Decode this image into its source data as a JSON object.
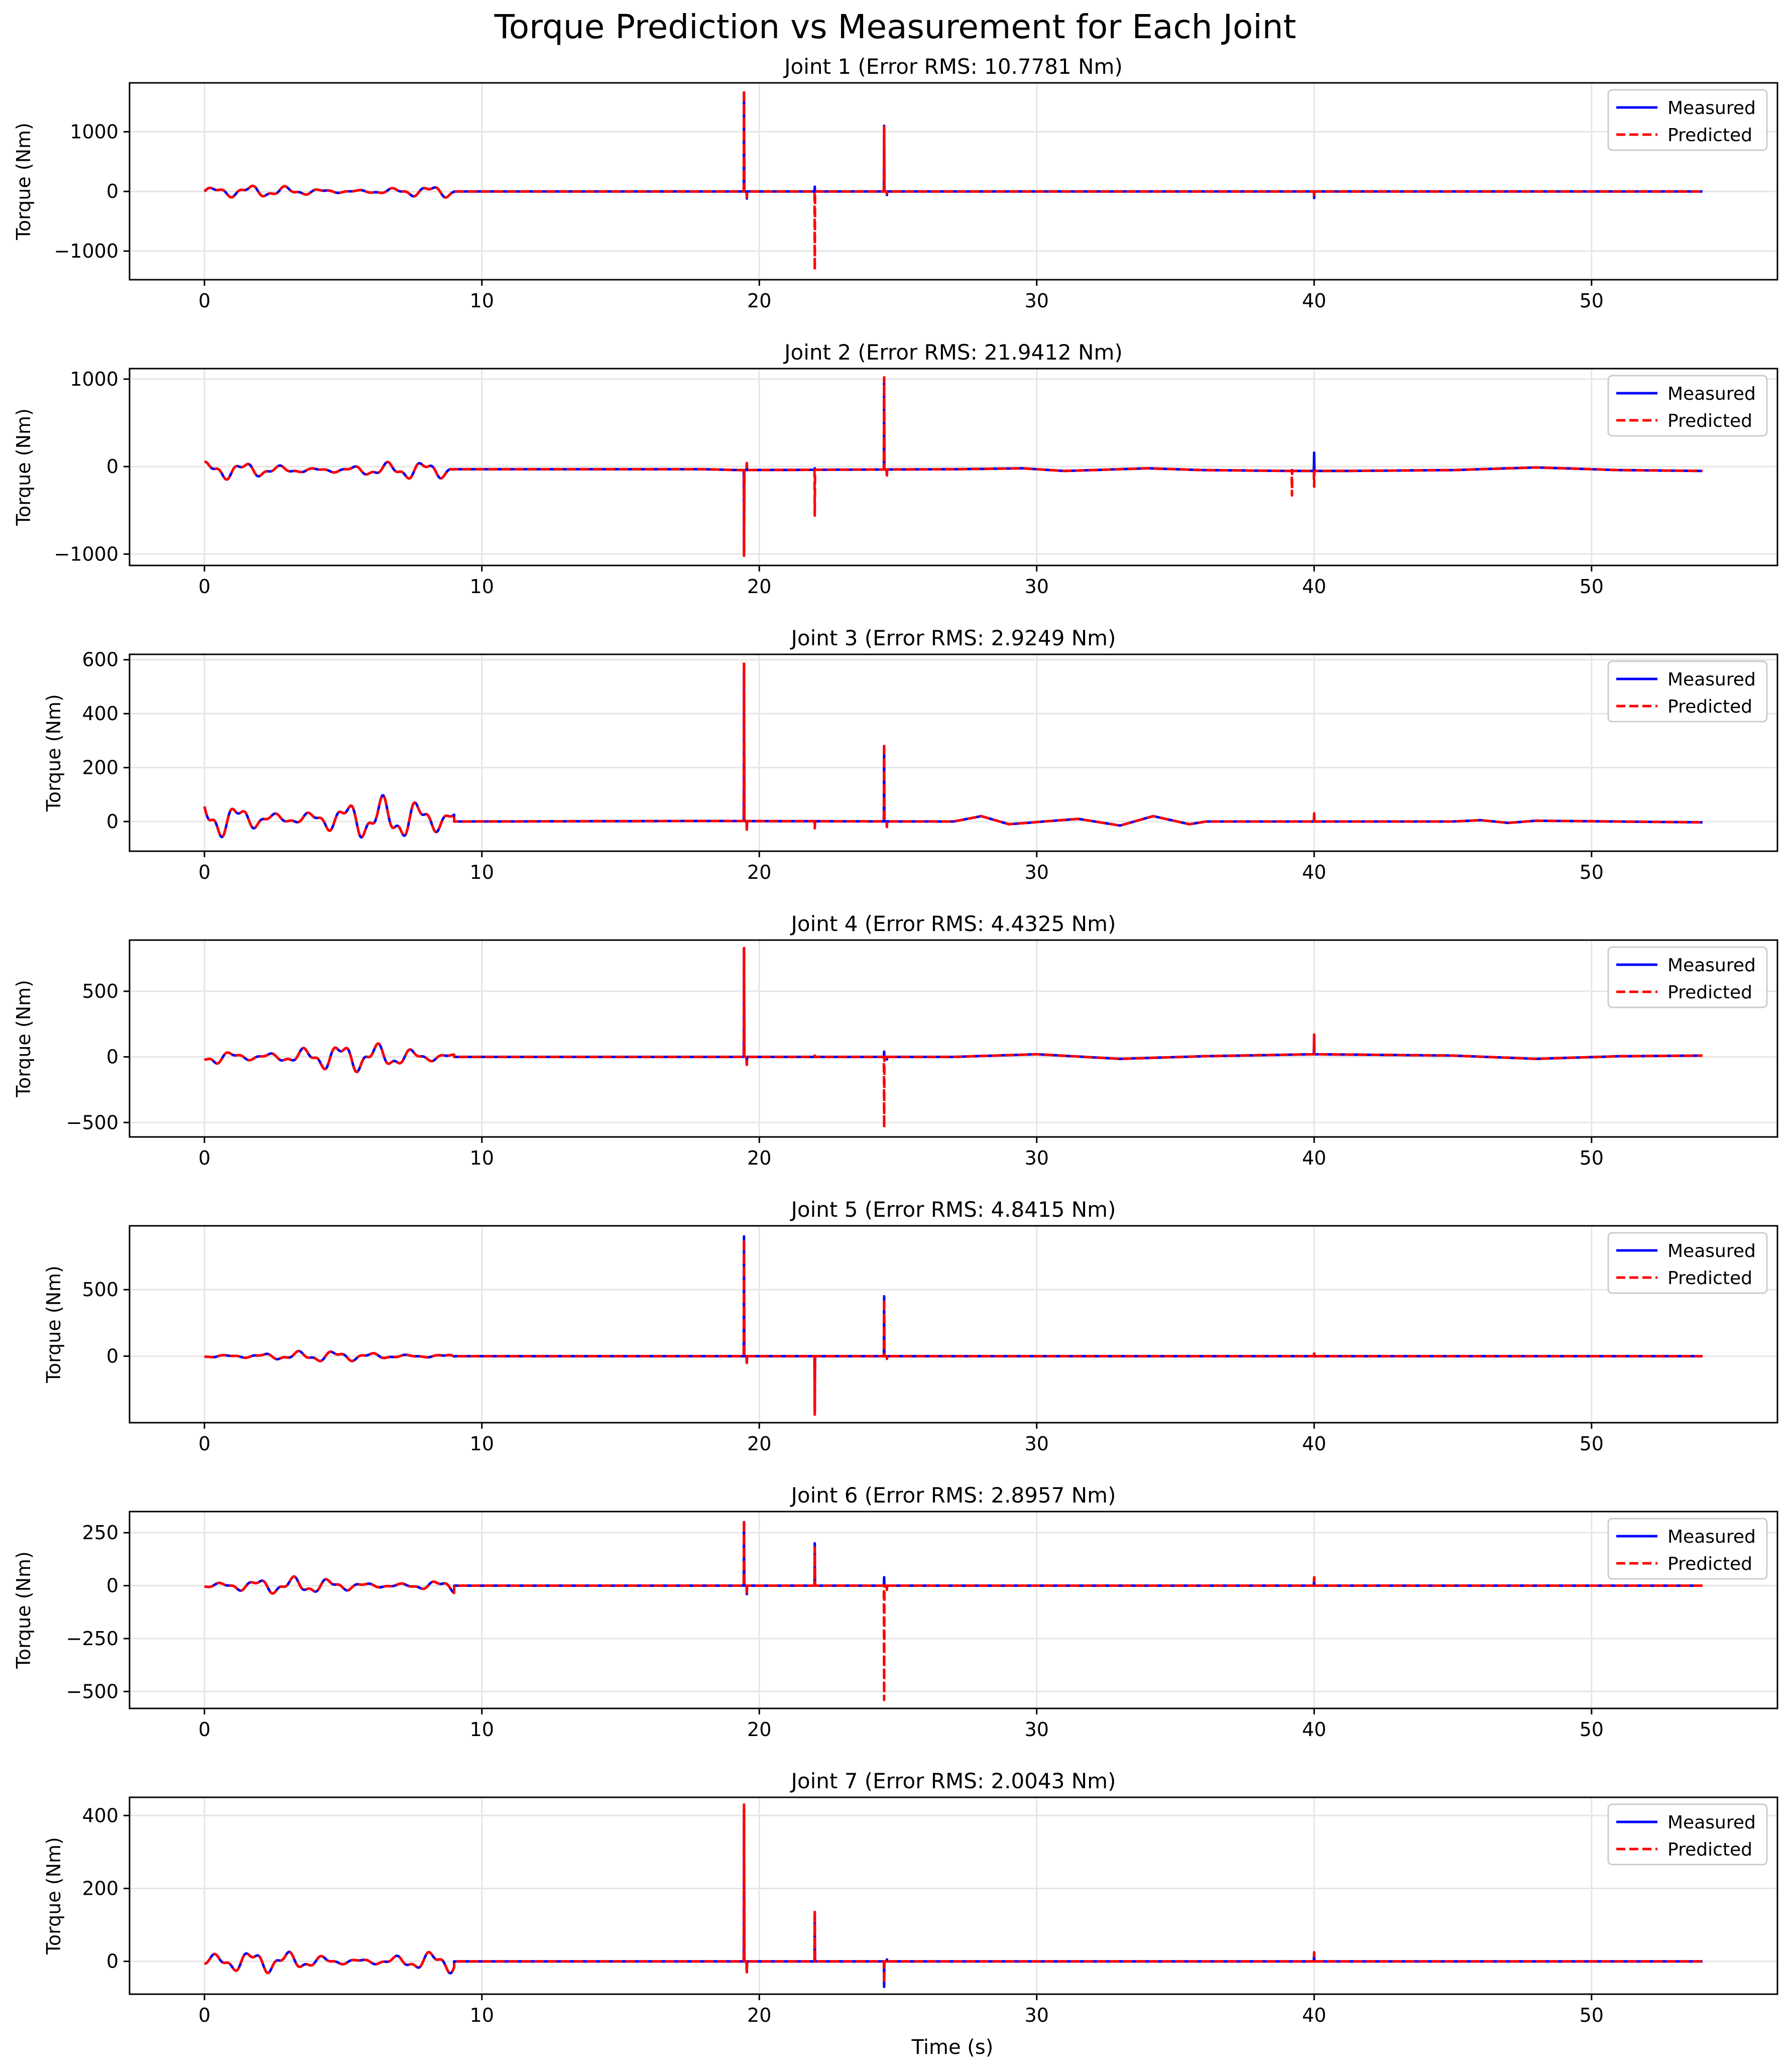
{
  "figure": {
    "title": "Torque Prediction vs Measurement for Each Joint",
    "xlabel": "Time (s)"
  },
  "colors": {
    "measured": "#0000ff",
    "predicted": "#ff0000",
    "grid": "#e6e6e6",
    "axis": "#000000"
  },
  "chart_data": [
    {
      "type": "line",
      "title": "Joint 1 (Error RMS: 10.7781 Nm)",
      "ylabel": "Torque (Nm)",
      "xlim": [
        -2.7,
        56.7
      ],
      "ylim": [
        -1480,
        1820
      ],
      "xticks": [
        0,
        10,
        20,
        30,
        40,
        50
      ],
      "yticks": [
        -1000,
        0,
        1000
      ],
      "yticklabels": [
        "−1000",
        "0",
        "1000"
      ],
      "grid": true,
      "legend": "top-right",
      "osc": {
        "amp": 100,
        "offset": 0,
        "end": 9.0
      },
      "tail": [
        [
          9.0,
          0
        ],
        [
          54,
          0
        ]
      ],
      "series": [
        {
          "name": "Measured",
          "style": "solid",
          "spikes": [
            [
              19.45,
              1650
            ],
            [
              19.55,
              -120
            ],
            [
              22.0,
              80
            ],
            [
              24.5,
              1100
            ],
            [
              24.6,
              -60
            ],
            [
              40.0,
              -110
            ]
          ]
        },
        {
          "name": "Predicted",
          "style": "dashed",
          "spikes": [
            [
              19.45,
              1700
            ],
            [
              19.55,
              -100
            ],
            [
              22.0,
              -1320
            ],
            [
              24.5,
              1080
            ],
            [
              24.6,
              -40
            ],
            [
              40.0,
              -90
            ]
          ]
        }
      ]
    },
    {
      "type": "line",
      "title": "Joint 2 (Error RMS: 21.9412 Nm)",
      "ylabel": "Torque (Nm)",
      "xlim": [
        -2.7,
        56.7
      ],
      "ylim": [
        -1130,
        1120
      ],
      "xticks": [
        0,
        10,
        20,
        30,
        40,
        50
      ],
      "yticks": [
        -1000,
        0,
        1000
      ],
      "yticklabels": [
        "−1000",
        "0",
        "1000"
      ],
      "grid": true,
      "legend": "top-right",
      "osc": {
        "amp": 100,
        "offset": -40,
        "end": 9.0
      },
      "tail": [
        [
          9.0,
          -30
        ],
        [
          18,
          -30
        ],
        [
          19.3,
          -40
        ],
        [
          27,
          -30
        ],
        [
          29.5,
          -20
        ],
        [
          31,
          -50
        ],
        [
          34,
          -20
        ],
        [
          36,
          -40
        ],
        [
          39.2,
          -50
        ],
        [
          41,
          -50
        ],
        [
          45,
          -40
        ],
        [
          48,
          -10
        ],
        [
          51,
          -40
        ],
        [
          54,
          -50
        ]
      ],
      "series": [
        {
          "name": "Measured",
          "style": "solid",
          "spikes": [
            [
              19.45,
              -1000
            ],
            [
              19.55,
              40
            ],
            [
              22.0,
              -20
            ],
            [
              24.5,
              1000
            ],
            [
              24.6,
              -100
            ],
            [
              39.2,
              -40
            ],
            [
              40.0,
              160
            ],
            [
              40.7,
              -50
            ]
          ]
        },
        {
          "name": "Predicted",
          "style": "dashed",
          "spikes": [
            [
              19.45,
              -1020
            ],
            [
              19.55,
              40
            ],
            [
              22.0,
              -560
            ],
            [
              24.5,
              1020
            ],
            [
              24.6,
              -100
            ],
            [
              39.2,
              -330
            ],
            [
              40.0,
              -230
            ]
          ]
        }
      ]
    },
    {
      "type": "line",
      "title": "Joint 3 (Error RMS: 2.9249 Nm)",
      "ylabel": "Torque (Nm)",
      "xlim": [
        -2.7,
        56.7
      ],
      "ylim": [
        -110,
        620
      ],
      "xticks": [
        0,
        10,
        20,
        30,
        40,
        50
      ],
      "yticks": [
        0,
        200,
        400,
        600
      ],
      "yticklabels": [
        "0",
        "200",
        "400",
        "600"
      ],
      "grid": true,
      "legend": "top-right",
      "osc": {
        "amp": 80,
        "offset": 10,
        "end": 9.0
      },
      "tail": [
        [
          9.0,
          0
        ],
        [
          18,
          2
        ],
        [
          27,
          0
        ],
        [
          28,
          20
        ],
        [
          29,
          -10
        ],
        [
          31.5,
          10
        ],
        [
          33,
          -15
        ],
        [
          34.2,
          20
        ],
        [
          35.5,
          -10
        ],
        [
          36.1,
          0
        ],
        [
          45,
          0
        ],
        [
          46,
          5
        ],
        [
          47,
          -5
        ],
        [
          48,
          3
        ],
        [
          54,
          -3
        ]
      ],
      "series": [
        {
          "name": "Measured",
          "style": "solid",
          "spikes": [
            [
              19.45,
              580
            ],
            [
              19.55,
              -30
            ],
            [
              22.0,
              -10
            ],
            [
              24.5,
              280
            ],
            [
              24.6,
              -20
            ],
            [
              40.0,
              20
            ]
          ]
        },
        {
          "name": "Predicted",
          "style": "dashed",
          "spikes": [
            [
              19.45,
              590
            ],
            [
              19.55,
              -30
            ],
            [
              22.0,
              -25
            ],
            [
              24.5,
              290
            ],
            [
              24.6,
              -20
            ],
            [
              40.0,
              30
            ]
          ]
        }
      ]
    },
    {
      "type": "line",
      "title": "Joint 4 (Error RMS: 4.4325 Nm)",
      "ylabel": "Torque (Nm)",
      "xlim": [
        -2.7,
        56.7
      ],
      "ylim": [
        -610,
        890
      ],
      "xticks": [
        0,
        10,
        20,
        30,
        40,
        50
      ],
      "yticks": [
        -500,
        0,
        500
      ],
      "yticklabels": [
        "−500",
        "0",
        "500"
      ],
      "grid": true,
      "legend": "top-right",
      "osc": {
        "amp": 110,
        "offset": 0,
        "end": 9.0
      },
      "tail": [
        [
          9.0,
          0
        ],
        [
          18,
          0
        ],
        [
          27,
          0
        ],
        [
          30,
          20
        ],
        [
          33,
          -15
        ],
        [
          36,
          5
        ],
        [
          40,
          20
        ],
        [
          45,
          10
        ],
        [
          48,
          -15
        ],
        [
          51,
          5
        ],
        [
          54,
          10
        ]
      ],
      "series": [
        {
          "name": "Measured",
          "style": "solid",
          "spikes": [
            [
              19.45,
              820
            ],
            [
              19.55,
              -60
            ],
            [
              22.0,
              10
            ],
            [
              24.5,
              40
            ],
            [
              24.6,
              -20
            ],
            [
              40.0,
              170
            ]
          ]
        },
        {
          "name": "Predicted",
          "style": "dashed",
          "spikes": [
            [
              19.45,
              830
            ],
            [
              19.55,
              -60
            ],
            [
              22.0,
              10
            ],
            [
              24.5,
              -540
            ],
            [
              24.6,
              -20
            ],
            [
              40.0,
              170
            ]
          ]
        }
      ]
    },
    {
      "type": "line",
      "title": "Joint 5 (Error RMS: 4.8415 Nm)",
      "ylabel": "Torque (Nm)",
      "xlim": [
        -2.7,
        56.7
      ],
      "ylim": [
        -500,
        980
      ],
      "xticks": [
        0,
        10,
        20,
        30,
        40,
        50
      ],
      "yticks": [
        0,
        500
      ],
      "yticklabels": [
        "0",
        "500"
      ],
      "grid": true,
      "legend": "top-right",
      "osc": {
        "amp": 40,
        "offset": 0,
        "end": 9.0
      },
      "tail": [
        [
          9.0,
          0
        ],
        [
          54,
          0
        ]
      ],
      "series": [
        {
          "name": "Measured",
          "style": "solid",
          "spikes": [
            [
              19.45,
              900
            ],
            [
              19.55,
              -50
            ],
            [
              22.0,
              -420
            ],
            [
              24.5,
              450
            ],
            [
              24.6,
              -20
            ],
            [
              40.0,
              20
            ]
          ]
        },
        {
          "name": "Predicted",
          "style": "dashed",
          "spikes": [
            [
              19.45,
              880
            ],
            [
              19.55,
              -50
            ],
            [
              22.0,
              -440
            ],
            [
              24.5,
              430
            ],
            [
              24.6,
              -20
            ],
            [
              40.0,
              20
            ]
          ]
        }
      ]
    },
    {
      "type": "line",
      "title": "Joint 6 (Error RMS: 2.8957 Nm)",
      "ylabel": "Torque (Nm)",
      "xlim": [
        -2.7,
        56.7
      ],
      "ylim": [
        -580,
        350
      ],
      "xticks": [
        0,
        10,
        20,
        30,
        40,
        50
      ],
      "yticks": [
        -500,
        -250,
        0,
        250
      ],
      "yticklabels": [
        "−500",
        "−250",
        "0",
        "250"
      ],
      "grid": true,
      "legend": "top-right",
      "osc": {
        "amp": 40,
        "offset": 0,
        "end": 9.0
      },
      "tail": [
        [
          9.0,
          0
        ],
        [
          54,
          0
        ]
      ],
      "series": [
        {
          "name": "Measured",
          "style": "solid",
          "spikes": [
            [
              19.45,
              300
            ],
            [
              19.55,
              -40
            ],
            [
              22.0,
              200
            ],
            [
              24.5,
              40
            ],
            [
              24.6,
              -20
            ],
            [
              40.0,
              30
            ]
          ]
        },
        {
          "name": "Predicted",
          "style": "dashed",
          "spikes": [
            [
              19.45,
              310
            ],
            [
              19.55,
              -40
            ],
            [
              22.0,
              180
            ],
            [
              24.5,
              -540
            ],
            [
              24.6,
              -20
            ],
            [
              40.0,
              40
            ]
          ]
        }
      ]
    },
    {
      "type": "line",
      "title": "Joint 7 (Error RMS: 2.0043 Nm)",
      "ylabel": "Torque (Nm)",
      "xlim": [
        -2.7,
        56.7
      ],
      "ylim": [
        -90,
        450
      ],
      "xticks": [
        0,
        10,
        20,
        30,
        40,
        50
      ],
      "yticks": [
        0,
        200,
        400
      ],
      "yticklabels": [
        "0",
        "200",
        "400"
      ],
      "grid": true,
      "legend": "top-right",
      "osc": {
        "amp": 30,
        "offset": 0,
        "end": 9.0
      },
      "tail": [
        [
          9.0,
          0
        ],
        [
          54,
          0
        ]
      ],
      "series": [
        {
          "name": "Measured",
          "style": "solid",
          "spikes": [
            [
              19.45,
              420
            ],
            [
              19.55,
              -30
            ],
            [
              22.0,
              130
            ],
            [
              24.5,
              -70
            ],
            [
              24.6,
              5
            ],
            [
              40.0,
              20
            ]
          ]
        },
        {
          "name": "Predicted",
          "style": "dashed",
          "spikes": [
            [
              19.45,
              430
            ],
            [
              19.55,
              -30
            ],
            [
              22.0,
              140
            ],
            [
              24.5,
              -60
            ],
            [
              24.6,
              5
            ],
            [
              40.0,
              25
            ]
          ]
        }
      ]
    }
  ]
}
